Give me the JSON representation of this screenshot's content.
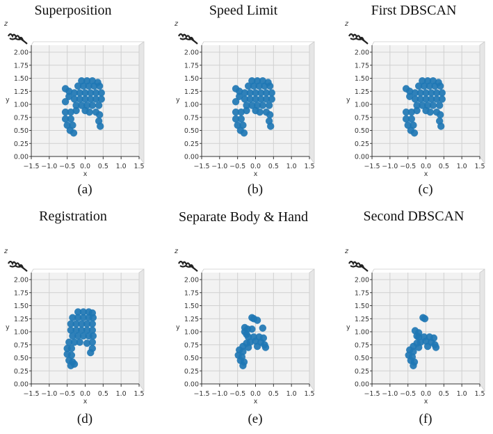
{
  "figure": {
    "panels": [
      {
        "title": "Superposition",
        "caption": "(a)"
      },
      {
        "title": "Speed Limit",
        "caption": "(b)"
      },
      {
        "title": "First DBSCAN",
        "caption": "(c)"
      },
      {
        "title": "Registration",
        "caption": "(d)"
      },
      {
        "title": "Separate Body & Hand",
        "caption": "(e)"
      },
      {
        "title": "Second DBSCAN",
        "caption": "(f)"
      }
    ]
  },
  "chart_data": [
    {
      "type": "scatter",
      "title": "Superposition",
      "xlabel": "x",
      "ylabel": "y",
      "zlabel": "z",
      "xlim": [
        -1.5,
        1.5
      ],
      "ylim": [
        0,
        2
      ],
      "xticks": [
        "−1.5",
        "−1.0",
        "−0.5",
        "0.0",
        "0.5",
        "1.0",
        "1.5"
      ],
      "yticks": [
        "0.00",
        "0.25",
        "0.50",
        "0.75",
        "1.00",
        "1.25",
        "1.50",
        "1.75",
        "2.00"
      ],
      "grid": true,
      "color": "#1f77b4",
      "points": [
        [
          -0.1,
          1.45
        ],
        [
          0.05,
          1.45
        ],
        [
          0.2,
          1.45
        ],
        [
          0.35,
          1.42
        ],
        [
          -0.2,
          1.35
        ],
        [
          -0.05,
          1.35
        ],
        [
          0.1,
          1.35
        ],
        [
          0.25,
          1.35
        ],
        [
          0.4,
          1.35
        ],
        [
          -0.3,
          1.22
        ],
        [
          -0.15,
          1.22
        ],
        [
          0,
          1.22
        ],
        [
          0.15,
          1.22
        ],
        [
          0.3,
          1.22
        ],
        [
          0.45,
          1.22
        ],
        [
          -0.3,
          1.1
        ],
        [
          -0.15,
          1.1
        ],
        [
          0,
          1.1
        ],
        [
          0.15,
          1.1
        ],
        [
          0.3,
          1.1
        ],
        [
          0.45,
          1.1
        ],
        [
          -0.25,
          0.98
        ],
        [
          -0.1,
          0.98
        ],
        [
          0.05,
          0.98
        ],
        [
          0.2,
          0.98
        ],
        [
          0.38,
          0.98
        ],
        [
          -0.55,
          1.3
        ],
        [
          -0.45,
          1.25
        ],
        [
          -0.55,
          1.05
        ],
        [
          -0.45,
          1.15
        ],
        [
          -0.55,
          0.85
        ],
        [
          -0.4,
          0.85
        ],
        [
          -0.25,
          0.88
        ],
        [
          -0.55,
          0.72
        ],
        [
          -0.4,
          0.72
        ],
        [
          -0.5,
          0.6
        ],
        [
          -0.35,
          0.6
        ],
        [
          -0.42,
          0.5
        ],
        [
          -0.32,
          0.45
        ],
        [
          0.3,
          0.85
        ],
        [
          0.4,
          0.8
        ],
        [
          0.38,
          0.68
        ],
        [
          0.42,
          0.58
        ],
        [
          0,
          0.88
        ],
        [
          0.12,
          0.85
        ]
      ]
    },
    {
      "type": "scatter",
      "title": "Speed Limit",
      "xlabel": "x",
      "ylabel": "y",
      "zlabel": "z",
      "xlim": [
        -1.5,
        1.5
      ],
      "ylim": [
        0,
        2
      ],
      "xticks": [
        "−1.5",
        "−1.0",
        "−0.5",
        "0.0",
        "0.5",
        "1.0",
        "1.5"
      ],
      "yticks": [
        "0.00",
        "0.25",
        "0.50",
        "0.75",
        "1.00",
        "1.25",
        "1.50",
        "1.75",
        "2.00"
      ],
      "grid": true,
      "color": "#1f77b4",
      "points": [
        [
          -0.1,
          1.45
        ],
        [
          0.05,
          1.45
        ],
        [
          0.2,
          1.45
        ],
        [
          0.35,
          1.42
        ],
        [
          -0.2,
          1.35
        ],
        [
          -0.05,
          1.35
        ],
        [
          0.1,
          1.35
        ],
        [
          0.25,
          1.35
        ],
        [
          0.4,
          1.35
        ],
        [
          -0.3,
          1.22
        ],
        [
          -0.15,
          1.22
        ],
        [
          0,
          1.22
        ],
        [
          0.15,
          1.22
        ],
        [
          0.3,
          1.22
        ],
        [
          0.45,
          1.22
        ],
        [
          -0.3,
          1.1
        ],
        [
          -0.15,
          1.1
        ],
        [
          0,
          1.1
        ],
        [
          0.15,
          1.1
        ],
        [
          0.3,
          1.1
        ],
        [
          0.45,
          1.1
        ],
        [
          -0.25,
          0.98
        ],
        [
          -0.1,
          0.98
        ],
        [
          0.05,
          0.98
        ],
        [
          0.2,
          0.98
        ],
        [
          0.38,
          0.98
        ],
        [
          -0.55,
          1.3
        ],
        [
          -0.45,
          1.25
        ],
        [
          -0.55,
          1.05
        ],
        [
          -0.45,
          1.15
        ],
        [
          -0.55,
          0.85
        ],
        [
          -0.4,
          0.85
        ],
        [
          -0.25,
          0.88
        ],
        [
          -0.55,
          0.72
        ],
        [
          -0.4,
          0.72
        ],
        [
          -0.5,
          0.6
        ],
        [
          -0.35,
          0.6
        ],
        [
          -0.42,
          0.5
        ],
        [
          -0.32,
          0.45
        ],
        [
          0.3,
          0.85
        ],
        [
          0.4,
          0.8
        ],
        [
          0.38,
          0.68
        ],
        [
          0.42,
          0.58
        ],
        [
          0,
          0.88
        ],
        [
          0.12,
          0.85
        ]
      ]
    },
    {
      "type": "scatter",
      "title": "First DBSCAN",
      "xlabel": "x",
      "ylabel": "y",
      "zlabel": "z",
      "xlim": [
        -1.5,
        1.5
      ],
      "ylim": [
        0,
        2
      ],
      "xticks": [
        "−1.5",
        "−1.0",
        "−0.5",
        "0.0",
        "0.5",
        "1.0",
        "1.5"
      ],
      "yticks": [
        "0.00",
        "0.25",
        "0.50",
        "0.75",
        "1.00",
        "1.25",
        "1.50",
        "1.75",
        "2.00"
      ],
      "grid": true,
      "color": "#1f77b4",
      "points": [
        [
          -0.1,
          1.45
        ],
        [
          0.05,
          1.45
        ],
        [
          0.2,
          1.45
        ],
        [
          0.35,
          1.42
        ],
        [
          -0.2,
          1.35
        ],
        [
          -0.05,
          1.35
        ],
        [
          0.1,
          1.35
        ],
        [
          0.25,
          1.35
        ],
        [
          0.4,
          1.35
        ],
        [
          -0.3,
          1.22
        ],
        [
          -0.15,
          1.22
        ],
        [
          0,
          1.22
        ],
        [
          0.15,
          1.22
        ],
        [
          0.3,
          1.22
        ],
        [
          0.45,
          1.22
        ],
        [
          -0.3,
          1.1
        ],
        [
          -0.15,
          1.1
        ],
        [
          0,
          1.1
        ],
        [
          0.15,
          1.1
        ],
        [
          0.3,
          1.1
        ],
        [
          0.45,
          1.1
        ],
        [
          -0.25,
          0.98
        ],
        [
          -0.1,
          0.98
        ],
        [
          0.05,
          0.98
        ],
        [
          0.2,
          0.98
        ],
        [
          0.38,
          0.98
        ],
        [
          -0.55,
          1.3
        ],
        [
          -0.45,
          1.25
        ],
        [
          -0.45,
          1.15
        ],
        [
          -0.55,
          0.85
        ],
        [
          -0.4,
          0.85
        ],
        [
          -0.25,
          0.88
        ],
        [
          -0.55,
          0.72
        ],
        [
          -0.4,
          0.72
        ],
        [
          -0.5,
          0.6
        ],
        [
          -0.35,
          0.6
        ],
        [
          -0.42,
          0.5
        ],
        [
          -0.32,
          0.45
        ],
        [
          0.3,
          0.85
        ],
        [
          0.4,
          0.8
        ],
        [
          0.38,
          0.68
        ],
        [
          0.42,
          0.58
        ],
        [
          0,
          0.88
        ],
        [
          0.12,
          0.85
        ]
      ]
    },
    {
      "type": "scatter",
      "title": "Registration",
      "xlabel": "x",
      "ylabel": "y",
      "zlabel": "z",
      "xlim": [
        -1.5,
        1.5
      ],
      "ylim": [
        0,
        2
      ],
      "xticks": [
        "−1.5",
        "−1.0",
        "−0.5",
        "0.0",
        "0.5",
        "1.0",
        "1.5"
      ],
      "yticks": [
        "0.00",
        "0.25",
        "0.50",
        "0.75",
        "1.00",
        "1.25",
        "1.50",
        "1.75",
        "2.00"
      ],
      "grid": true,
      "color": "#1f77b4",
      "points": [
        [
          -0.2,
          1.38
        ],
        [
          -0.05,
          1.38
        ],
        [
          0.1,
          1.38
        ],
        [
          0.2,
          1.36
        ],
        [
          -0.35,
          1.27
        ],
        [
          -0.2,
          1.27
        ],
        [
          -0.05,
          1.27
        ],
        [
          0.1,
          1.27
        ],
        [
          0.22,
          1.27
        ],
        [
          -0.4,
          1.15
        ],
        [
          -0.25,
          1.15
        ],
        [
          -0.1,
          1.15
        ],
        [
          0.05,
          1.15
        ],
        [
          0.2,
          1.15
        ],
        [
          -0.4,
          1.03
        ],
        [
          -0.25,
          1.03
        ],
        [
          -0.1,
          1.03
        ],
        [
          0.05,
          1.03
        ],
        [
          0.2,
          1.03
        ],
        [
          -0.35,
          0.92
        ],
        [
          -0.2,
          0.92
        ],
        [
          -0.05,
          0.92
        ],
        [
          0.1,
          0.92
        ],
        [
          0.22,
          0.92
        ],
        [
          -0.45,
          0.8
        ],
        [
          -0.3,
          0.8
        ],
        [
          -0.15,
          0.8
        ],
        [
          0.05,
          0.78
        ],
        [
          0.2,
          0.8
        ],
        [
          -0.5,
          0.68
        ],
        [
          -0.38,
          0.68
        ],
        [
          -0.5,
          0.57
        ],
        [
          -0.38,
          0.55
        ],
        [
          -0.45,
          0.45
        ],
        [
          -0.35,
          0.42
        ],
        [
          -0.4,
          0.35
        ],
        [
          -0.3,
          0.38
        ],
        [
          0.2,
          0.68
        ],
        [
          0.15,
          0.6
        ]
      ]
    },
    {
      "type": "scatter",
      "title": "Separate Body & Hand",
      "xlabel": "x",
      "ylabel": "y",
      "zlabel": "z",
      "xlim": [
        -1.5,
        1.5
      ],
      "ylim": [
        0,
        2
      ],
      "xticks": [
        "−1.5",
        "−1.0",
        "−0.5",
        "0.0",
        "0.5",
        "1.0",
        "1.5"
      ],
      "yticks": [
        "0.00",
        "0.25",
        "0.50",
        "0.75",
        "1.00",
        "1.25",
        "1.50",
        "1.75",
        "2.00"
      ],
      "grid": true,
      "color": "#1f77b4",
      "points": [
        [
          -0.1,
          1.27
        ],
        [
          -0.05,
          1.25
        ],
        [
          0.05,
          1.22
        ],
        [
          -0.3,
          1.08
        ],
        [
          -0.22,
          1.05
        ],
        [
          -0.25,
          0.95
        ],
        [
          -0.3,
          1.0
        ],
        [
          0.2,
          1.07
        ],
        [
          -0.1,
          1.05
        ],
        [
          -0.2,
          0.9
        ],
        [
          -0.05,
          0.9
        ],
        [
          0.1,
          0.9
        ],
        [
          0.22,
          0.88
        ],
        [
          -0.15,
          0.8
        ],
        [
          0,
          0.82
        ],
        [
          0.15,
          0.8
        ],
        [
          0.25,
          0.75
        ],
        [
          0.28,
          0.7
        ],
        [
          -0.25,
          0.78
        ],
        [
          0.05,
          0.72
        ],
        [
          -0.35,
          0.72
        ],
        [
          -0.45,
          0.65
        ],
        [
          -0.35,
          0.62
        ],
        [
          -0.48,
          0.55
        ],
        [
          -0.38,
          0.52
        ],
        [
          -0.42,
          0.45
        ],
        [
          -0.32,
          0.42
        ],
        [
          -0.35,
          0.35
        ],
        [
          -0.2,
          0.7
        ]
      ]
    },
    {
      "type": "scatter",
      "title": "Second DBSCAN",
      "xlabel": "x",
      "ylabel": "y",
      "zlabel": "z",
      "xlim": [
        -1.5,
        1.5
      ],
      "ylim": [
        0,
        2
      ],
      "xticks": [
        "−1.5",
        "−1.0",
        "−0.5",
        "0.0",
        "0.5",
        "1.0",
        "1.5"
      ],
      "yticks": [
        "0.00",
        "0.25",
        "0.50",
        "0.75",
        "1.00",
        "1.25",
        "1.50",
        "1.75",
        "2.00"
      ],
      "grid": true,
      "color": "#1f77b4",
      "points": [
        [
          -0.08,
          1.27
        ],
        [
          -0.03,
          1.25
        ],
        [
          -0.3,
          1.02
        ],
        [
          -0.2,
          0.98
        ],
        [
          -0.25,
          0.92
        ],
        [
          -0.2,
          0.9
        ],
        [
          -0.05,
          0.9
        ],
        [
          0.1,
          0.9
        ],
        [
          0.22,
          0.88
        ],
        [
          -0.15,
          0.8
        ],
        [
          0,
          0.82
        ],
        [
          0.15,
          0.8
        ],
        [
          0.25,
          0.75
        ],
        [
          0.28,
          0.7
        ],
        [
          -0.25,
          0.78
        ],
        [
          0.05,
          0.72
        ],
        [
          -0.35,
          0.72
        ],
        [
          -0.45,
          0.65
        ],
        [
          -0.35,
          0.62
        ],
        [
          -0.48,
          0.55
        ],
        [
          -0.38,
          0.52
        ],
        [
          -0.42,
          0.45
        ],
        [
          -0.32,
          0.42
        ],
        [
          -0.35,
          0.35
        ],
        [
          -0.2,
          0.7
        ]
      ]
    }
  ]
}
